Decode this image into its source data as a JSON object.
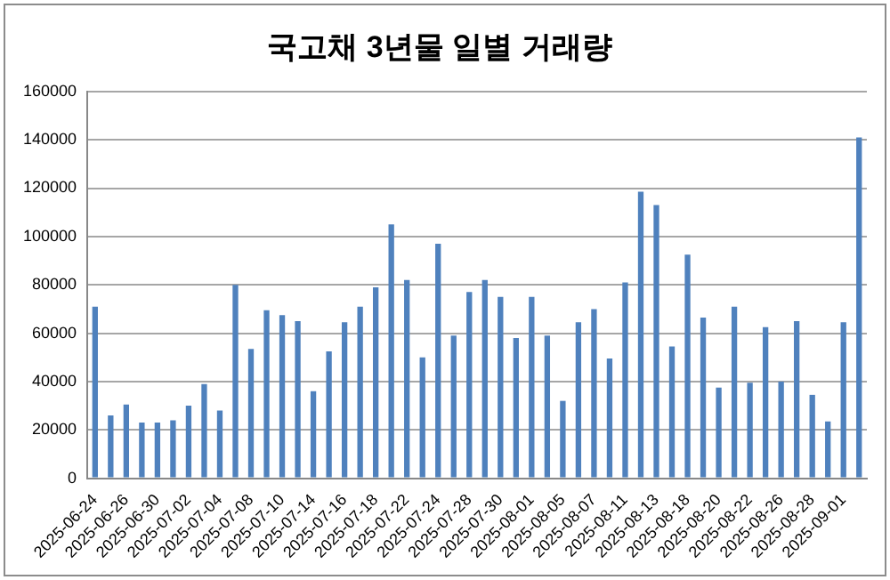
{
  "chart_data": {
    "type": "bar",
    "title": "국고채 3년물 일별 거래량",
    "categories": [
      "2025-06-24",
      null,
      "2025-06-26",
      null,
      "2025-06-30",
      null,
      "2025-07-02",
      null,
      "2025-07-04",
      null,
      "2025-07-08",
      null,
      "2025-07-10",
      null,
      "2025-07-14",
      null,
      "2025-07-16",
      null,
      "2025-07-18",
      null,
      "2025-07-22",
      null,
      "2025-07-24",
      null,
      "2025-07-28",
      null,
      "2025-07-30",
      null,
      "2025-08-01",
      null,
      "2025-08-05",
      null,
      "2025-08-07",
      null,
      "2025-08-11",
      null,
      "2025-08-13",
      null,
      "2025-08-18",
      null,
      "2025-08-20",
      null,
      "2025-08-22",
      null,
      "2025-08-26",
      null,
      "2025-08-28",
      null,
      "2025-09-01",
      null
    ],
    "values": [
      71000,
      26000,
      30500,
      23000,
      23000,
      24000,
      30000,
      39000,
      28000,
      80000,
      53500,
      69500,
      67500,
      65000,
      36000,
      52500,
      64500,
      71000,
      79000,
      105000,
      82000,
      50000,
      97000,
      59000,
      77000,
      82000,
      75000,
      58000,
      75000,
      59000,
      32000,
      64500,
      70000,
      49500,
      81000,
      118500,
      113000,
      54500,
      92500,
      66500,
      37500,
      71000,
      39500,
      62500,
      40000,
      65000,
      34500,
      23500,
      64500,
      141000
    ],
    "color": "#4f81bd",
    "ylim": [
      0,
      160000
    ],
    "yticks": [
      0,
      20000,
      40000,
      60000,
      80000,
      100000,
      120000,
      140000,
      160000
    ],
    "grid": "y"
  }
}
